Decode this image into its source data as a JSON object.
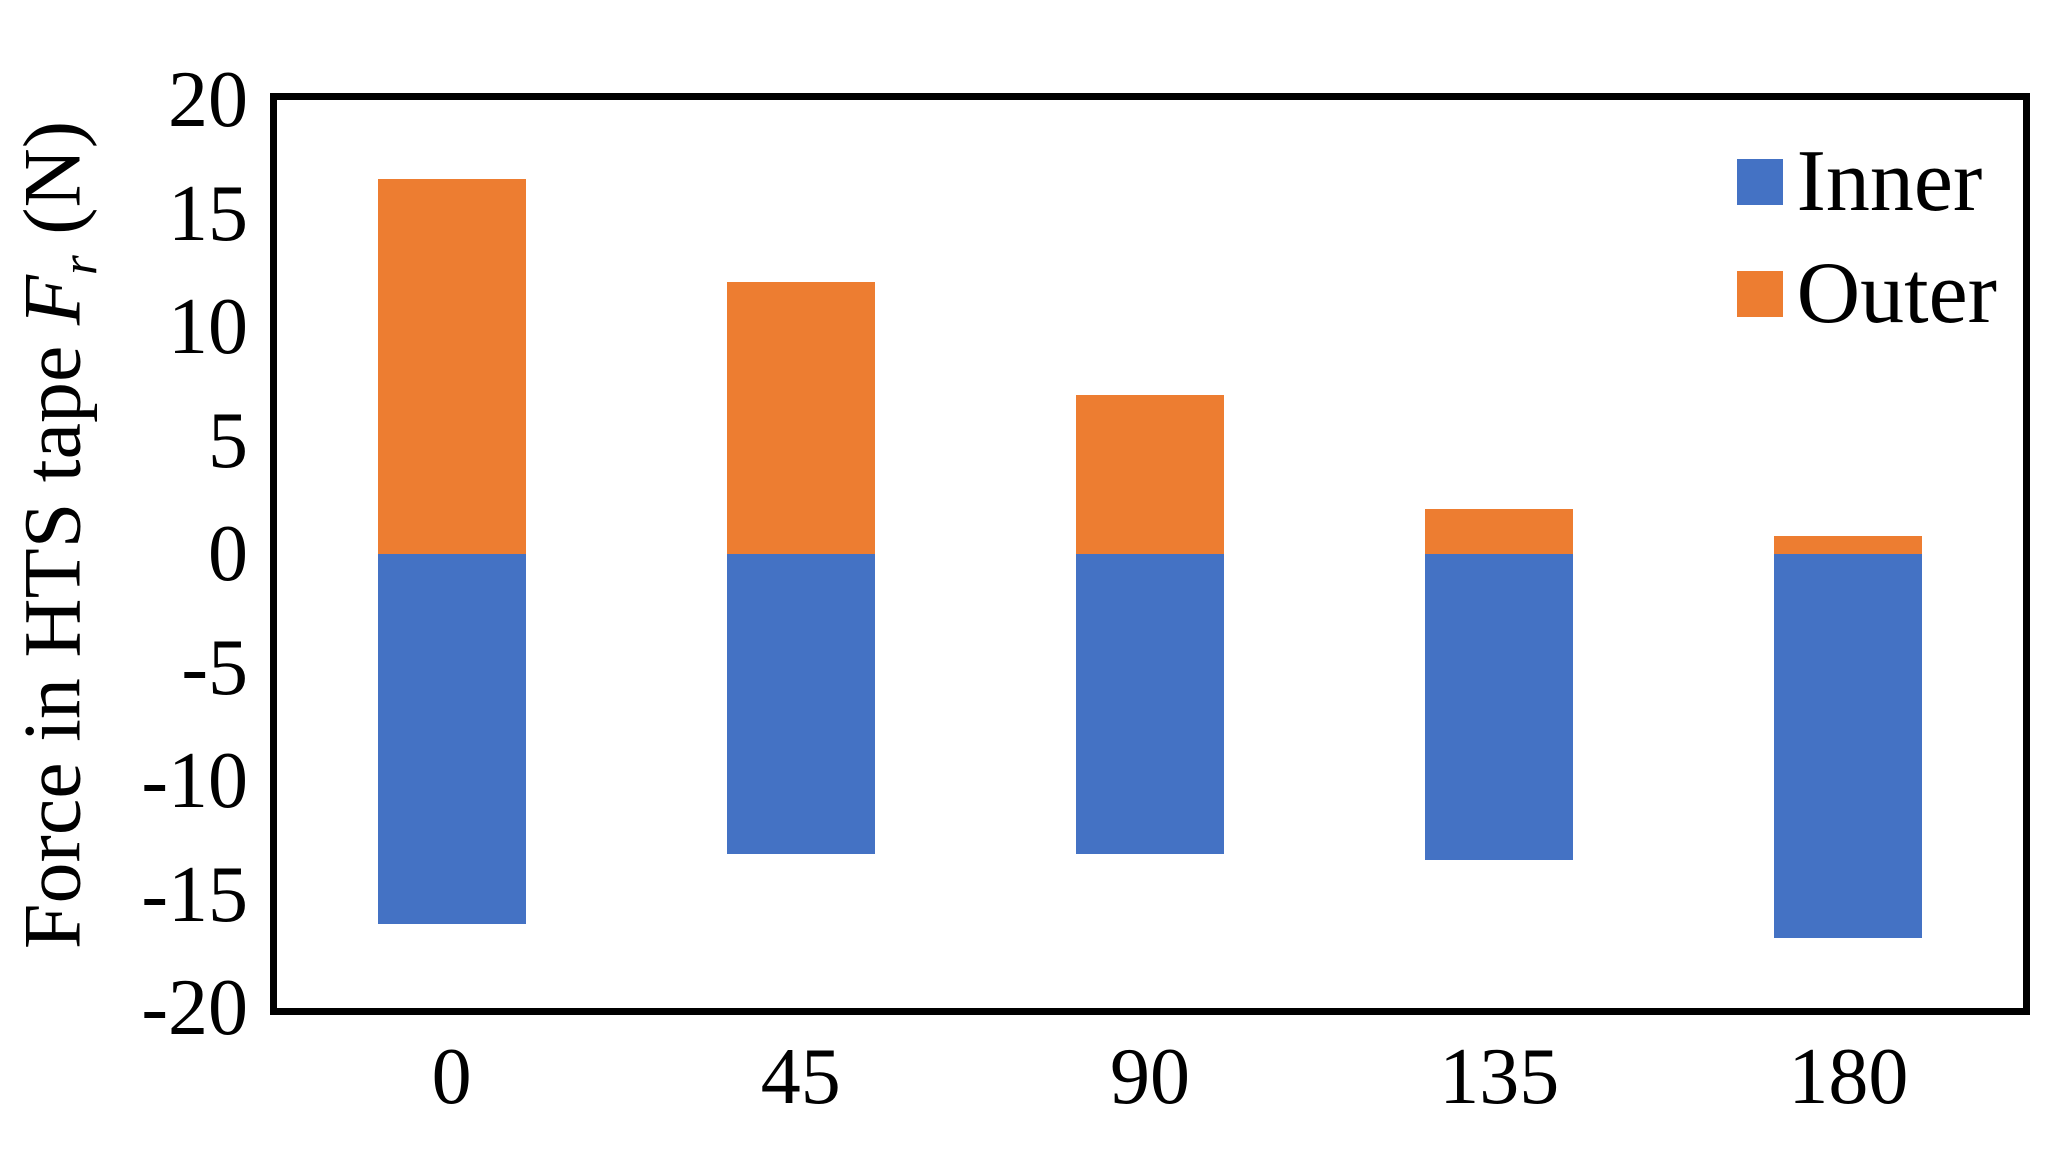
{
  "figure": {
    "background": "#ffffff",
    "border_color": "#000000",
    "text_color": "#000000"
  },
  "chart_data": {
    "type": "bar",
    "stacked": true,
    "title": "",
    "xlabel": "",
    "ylabel": "Force in HTS tape Fr (N)",
    "ylabel_parts": {
      "prefix": "Force in HTS tape ",
      "symbol": "F",
      "subscript": "r",
      "suffix": " (N)"
    },
    "categories": [
      "0",
      "45",
      "90",
      "135",
      "180"
    ],
    "series": [
      {
        "name": "Inner",
        "color": "#4472C4",
        "values": [
          -16.3,
          -13.2,
          -13.2,
          -13.5,
          -16.9
        ]
      },
      {
        "name": "Outer",
        "color": "#ED7D31",
        "values": [
          16.5,
          12.0,
          7.0,
          2.0,
          0.8
        ]
      }
    ],
    "ylim": [
      -20,
      20
    ],
    "ytick_step": 5,
    "yticks": [
      20,
      15,
      10,
      5,
      0,
      -5,
      -10,
      -15,
      -20
    ],
    "grid": false,
    "legend_position": "top-right-inside"
  }
}
